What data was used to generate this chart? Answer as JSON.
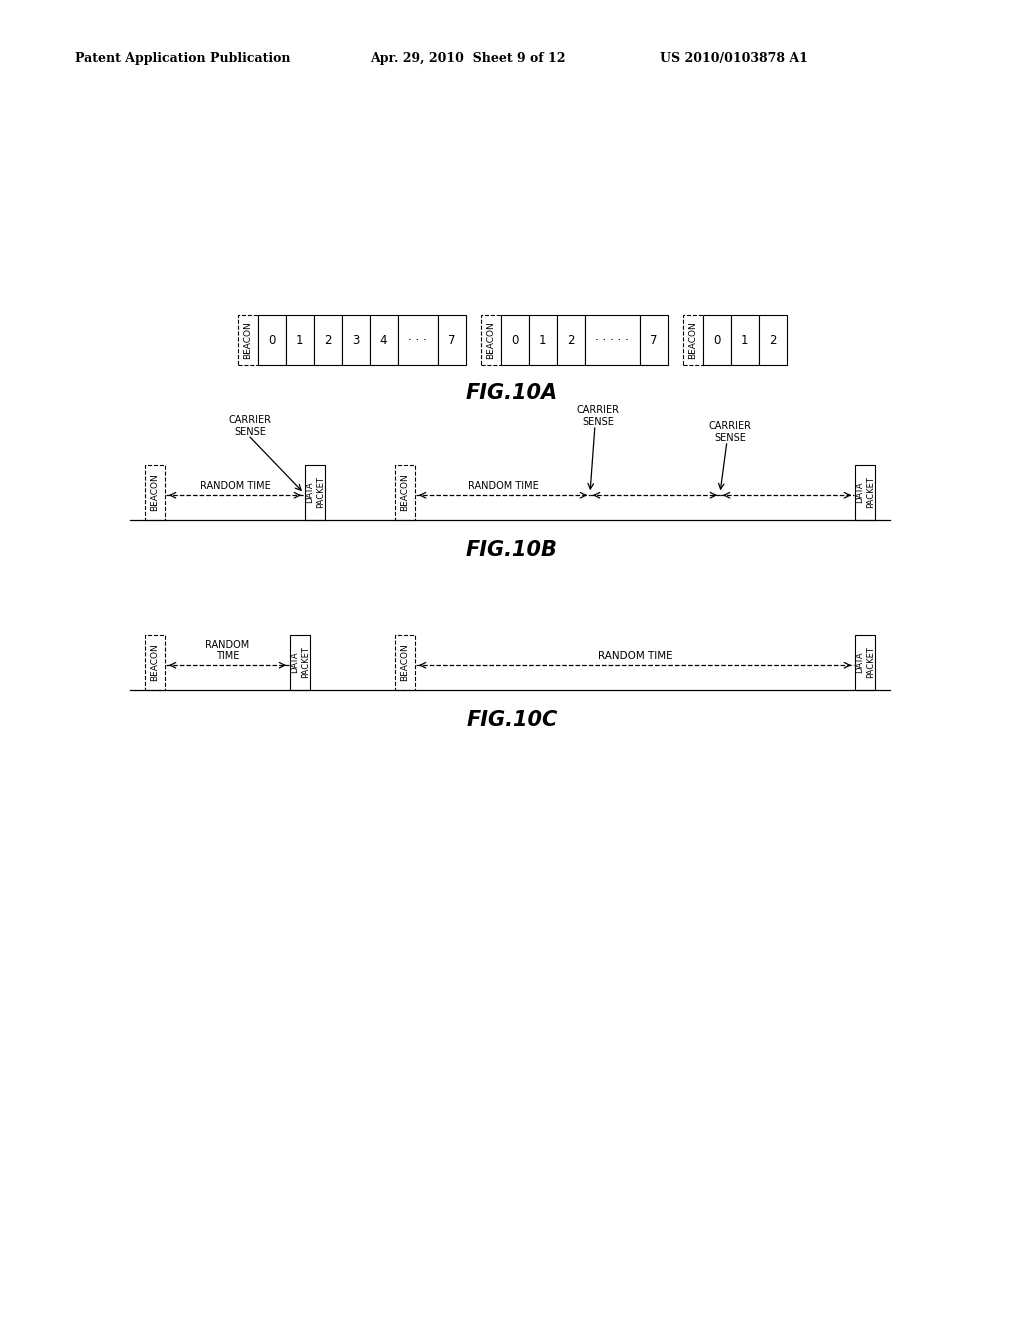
{
  "header_left": "Patent Application Publication",
  "header_mid": "Apr. 29, 2010  Sheet 9 of 12",
  "header_right": "US 2010/0103878 A1",
  "fig10a_label": "FIG.10A",
  "fig10b_label": "FIG.10B",
  "fig10c_label": "FIG.10C",
  "bg_color": "#ffffff",
  "text_color": "#000000"
}
